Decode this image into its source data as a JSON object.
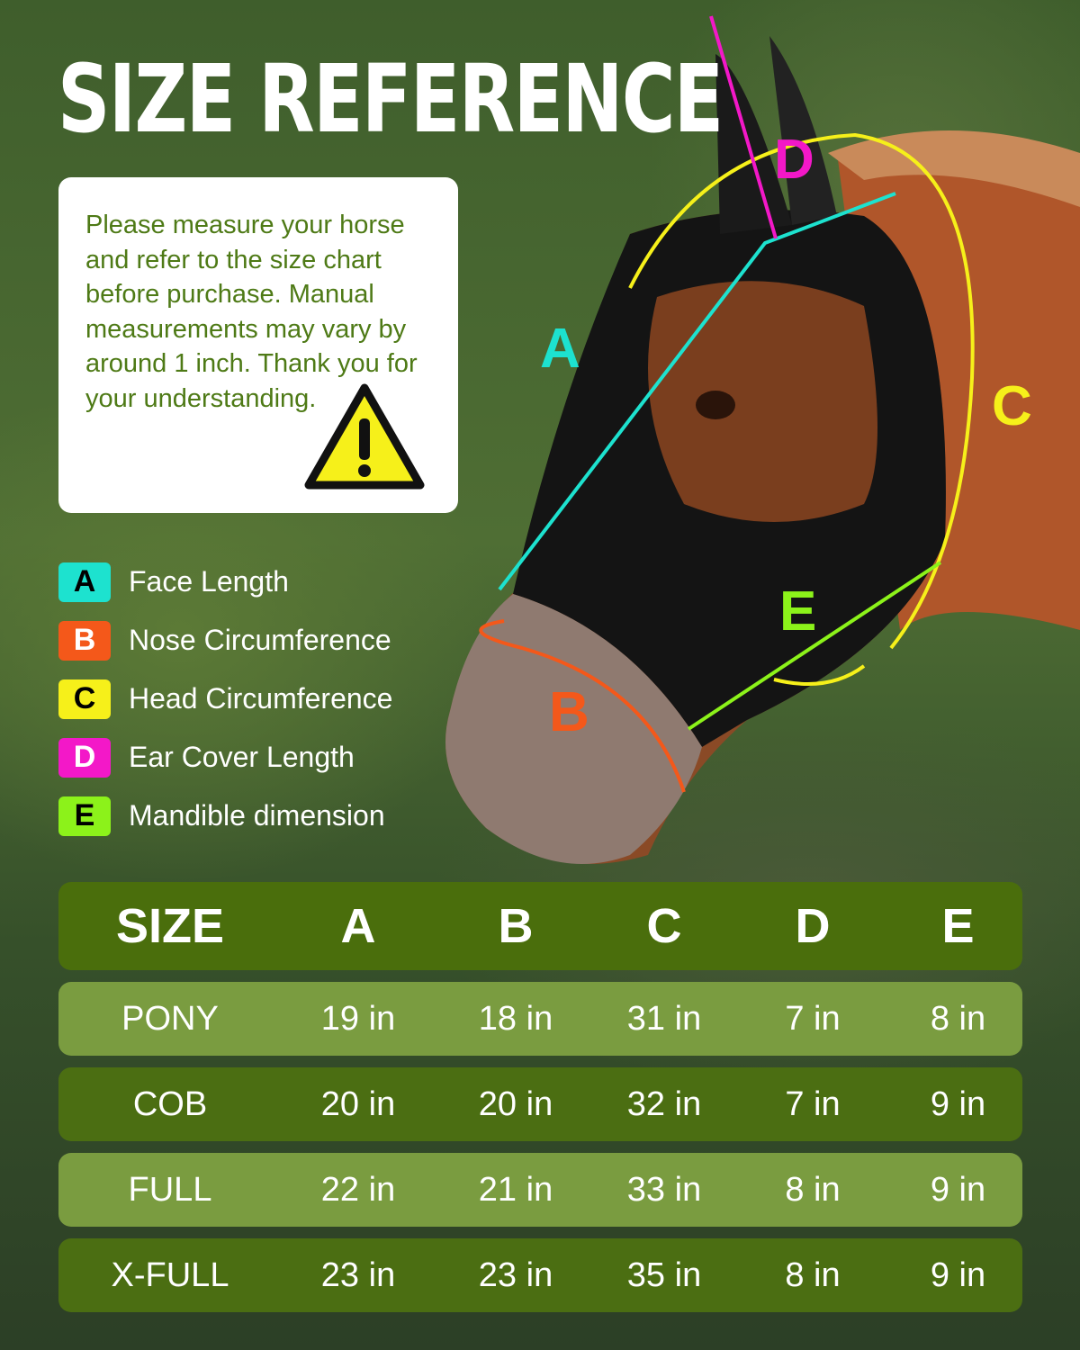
{
  "title": "SIZE REFERENCE",
  "note": "Please measure your horse and refer to the size chart before purchase. Manual measurements may vary by around 1 inch. Thank you for your understanding.",
  "warning_icon": "warning-triangle-icon",
  "legend": [
    {
      "key": "A",
      "label": "Face Length",
      "color": "#1de2cf"
    },
    {
      "key": "B",
      "label": "Nose Circumference",
      "color": "#f4581a"
    },
    {
      "key": "C",
      "label": "Head Circumference",
      "color": "#f6f01a"
    },
    {
      "key": "D",
      "label": "Ear Cover Length",
      "color": "#f318c8"
    },
    {
      "key": "E",
      "label": "Mandible dimension",
      "color": "#8cf21a"
    }
  ],
  "table": {
    "headers": [
      "SIZE",
      "A",
      "B",
      "C",
      "D",
      "E"
    ],
    "rows": [
      [
        "PONY",
        "19 in",
        "18 in",
        "31 in",
        "7 in",
        "8 in"
      ],
      [
        "COB",
        "20 in",
        "20 in",
        "32 in",
        "7 in",
        "9 in"
      ],
      [
        "FULL",
        "22 in",
        "21 in",
        "33 in",
        "8 in",
        "9 in"
      ],
      [
        "X-FULL",
        "23 in",
        "23 in",
        "35 in",
        "8 in",
        "9 in"
      ]
    ]
  }
}
